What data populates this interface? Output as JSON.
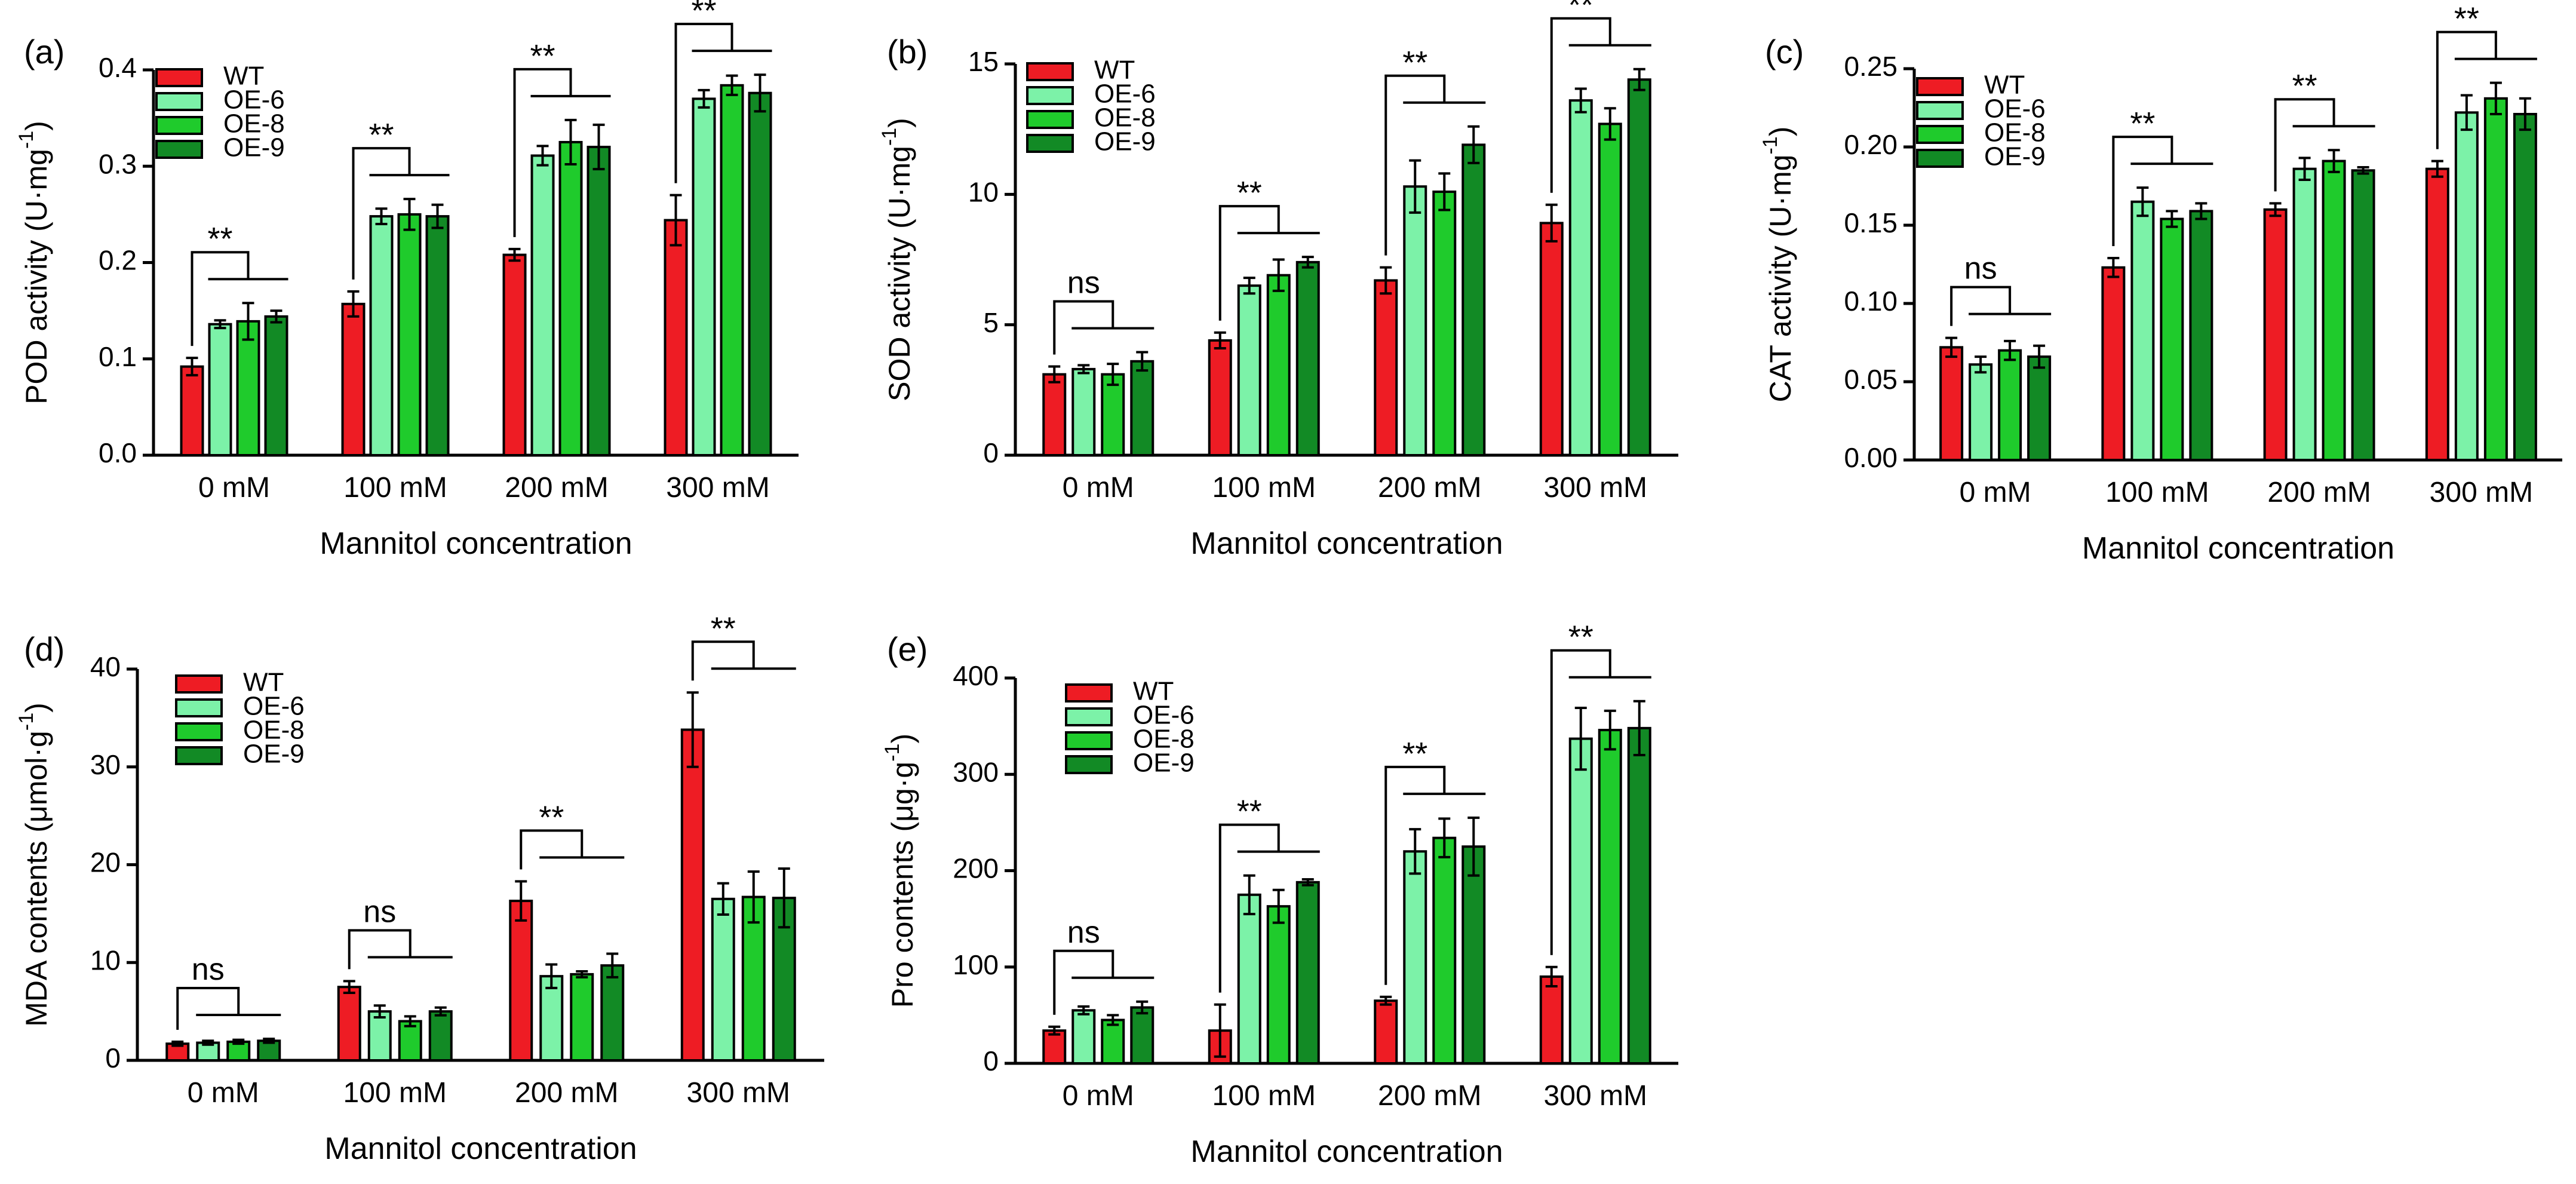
{
  "colors": {
    "WT": "#ee1c24",
    "OE-6": "#7cf2a8",
    "OE-8": "#1fcb2c",
    "OE-9": "#128a25"
  },
  "legend": [
    "WT",
    "OE-6",
    "OE-8",
    "OE-9"
  ],
  "chart_data": [
    {
      "type": "bar",
      "panel_label": "(a)",
      "title": "",
      "xlabel": "Mannitol concentration",
      "ylabel": "POD activity (U·mg",
      "ylabel_sup": "-1",
      "ylabel_close": ")",
      "categories": [
        "0 mM",
        "100 mM",
        "200 mM",
        "300 mM"
      ],
      "ylim": [
        0,
        0.4
      ],
      "yticks": [
        0,
        0.1,
        0.2,
        0.3,
        0.4
      ],
      "ytick_labels": [
        "0.0",
        "0.1",
        "0.2",
        "0.3",
        "0.4"
      ],
      "series": [
        {
          "name": "WT",
          "values": [
            0.092,
            0.157,
            0.208,
            0.244
          ],
          "errors": [
            0.009,
            0.013,
            0.006,
            0.026
          ]
        },
        {
          "name": "OE-6",
          "values": [
            0.136,
            0.248,
            0.311,
            0.37
          ],
          "errors": [
            0.004,
            0.008,
            0.01,
            0.009
          ]
        },
        {
          "name": "OE-8",
          "values": [
            0.139,
            0.25,
            0.325,
            0.384
          ],
          "errors": [
            0.019,
            0.016,
            0.023,
            0.01
          ]
        },
        {
          "name": "OE-9",
          "values": [
            0.144,
            0.248,
            0.32,
            0.376
          ],
          "errors": [
            0.006,
            0.012,
            0.023,
            0.019
          ]
        }
      ],
      "significance": [
        "**",
        "**",
        "**",
        "**"
      ]
    },
    {
      "type": "bar",
      "panel_label": "(b)",
      "title": "",
      "xlabel": "Mannitol concentration",
      "ylabel": "SOD activity (U·mg",
      "ylabel_sup": "-1",
      "ylabel_close": ")",
      "categories": [
        "0 mM",
        "100 mM",
        "200 mM",
        "300 mM"
      ],
      "ylim": [
        0,
        15
      ],
      "yticks": [
        0,
        5,
        10,
        15
      ],
      "ytick_labels": [
        "0",
        "5",
        "10",
        "15"
      ],
      "series": [
        {
          "name": "WT",
          "values": [
            3.1,
            4.4,
            6.7,
            8.9
          ],
          "errors": [
            0.3,
            0.3,
            0.5,
            0.7
          ]
        },
        {
          "name": "OE-6",
          "values": [
            3.3,
            6.5,
            10.3,
            13.6
          ],
          "errors": [
            0.15,
            0.3,
            1.0,
            0.45
          ]
        },
        {
          "name": "OE-8",
          "values": [
            3.1,
            6.9,
            10.1,
            12.7
          ],
          "errors": [
            0.4,
            0.6,
            0.7,
            0.6
          ]
        },
        {
          "name": "OE-9",
          "values": [
            3.6,
            7.4,
            11.9,
            14.4
          ],
          "errors": [
            0.35,
            0.2,
            0.7,
            0.4
          ]
        }
      ],
      "significance": [
        "ns",
        "**",
        "**",
        "**"
      ]
    },
    {
      "type": "bar",
      "panel_label": "(c)",
      "title": "",
      "xlabel": "Mannitol concentration",
      "ylabel": "CAT activity (U·mg",
      "ylabel_sup": "-1",
      "ylabel_close": ")",
      "categories": [
        "0 mM",
        "100 mM",
        "200 mM",
        "300 mM"
      ],
      "ylim": [
        0,
        0.25
      ],
      "yticks": [
        0,
        0.05,
        0.1,
        0.15,
        0.2,
        0.25
      ],
      "ytick_labels": [
        "0.00",
        "0.05",
        "0.10",
        "0.15",
        "0.20",
        "0.25"
      ],
      "series": [
        {
          "name": "WT",
          "values": [
            0.072,
            0.123,
            0.16,
            0.186
          ],
          "errors": [
            0.006,
            0.006,
            0.004,
            0.005
          ]
        },
        {
          "name": "OE-6",
          "values": [
            0.061,
            0.165,
            0.186,
            0.222
          ],
          "errors": [
            0.005,
            0.009,
            0.007,
            0.011
          ]
        },
        {
          "name": "OE-8",
          "values": [
            0.07,
            0.154,
            0.191,
            0.231
          ],
          "errors": [
            0.006,
            0.005,
            0.007,
            0.01
          ]
        },
        {
          "name": "OE-9",
          "values": [
            0.066,
            0.159,
            0.185,
            0.221
          ],
          "errors": [
            0.007,
            0.005,
            0.002,
            0.01
          ]
        }
      ],
      "significance": [
        "ns",
        "**",
        "**",
        "**"
      ]
    },
    {
      "type": "bar",
      "panel_label": "(d)",
      "title": "",
      "xlabel": "Mannitol concentration",
      "ylabel": "MDA contents (μmol·g",
      "ylabel_sup": "-1",
      "ylabel_close": ")",
      "categories": [
        "0 mM",
        "100 mM",
        "200 mM",
        "300 mM"
      ],
      "ylim": [
        0,
        40
      ],
      "yticks": [
        0,
        10,
        20,
        30,
        40
      ],
      "ytick_labels": [
        "0",
        "10",
        "20",
        "30",
        "40"
      ],
      "series": [
        {
          "name": "WT",
          "values": [
            1.7,
            7.5,
            16.3,
            33.8
          ],
          "errors": [
            0.2,
            0.6,
            2.0,
            3.8
          ]
        },
        {
          "name": "OE-6",
          "values": [
            1.8,
            5.0,
            8.6,
            16.5
          ],
          "errors": [
            0.2,
            0.6,
            1.2,
            1.6
          ]
        },
        {
          "name": "OE-8",
          "values": [
            1.9,
            4.0,
            8.8,
            16.7
          ],
          "errors": [
            0.2,
            0.5,
            0.3,
            2.6
          ]
        },
        {
          "name": "OE-9",
          "values": [
            2.0,
            5.0,
            9.7,
            16.6
          ],
          "errors": [
            0.2,
            0.4,
            1.2,
            3.0
          ]
        }
      ],
      "significance": [
        "ns",
        "ns",
        "**",
        "**"
      ]
    },
    {
      "type": "bar",
      "panel_label": "(e)",
      "title": "",
      "xlabel": "Mannitol concentration",
      "ylabel": "Pro contents (μg·g",
      "ylabel_sup": "-1",
      "ylabel_close": ")",
      "categories": [
        "0 mM",
        "100 mM",
        "200 mM",
        "300 mM"
      ],
      "ylim": [
        0,
        400
      ],
      "yticks": [
        0,
        100,
        200,
        300,
        400
      ],
      "ytick_labels": [
        "0",
        "100",
        "200",
        "300",
        "400"
      ],
      "series": [
        {
          "name": "WT",
          "values": [
            34,
            34,
            65,
            90
          ],
          "errors": [
            4,
            27,
            4,
            10
          ]
        },
        {
          "name": "OE-6",
          "values": [
            55,
            175,
            220,
            337
          ],
          "errors": [
            4,
            20,
            23,
            32
          ]
        },
        {
          "name": "OE-8",
          "values": [
            45,
            163,
            234,
            346
          ],
          "errors": [
            5,
            17,
            20,
            20
          ]
        },
        {
          "name": "OE-9",
          "values": [
            58,
            188,
            225,
            348
          ],
          "errors": [
            6,
            3,
            30,
            28
          ]
        }
      ],
      "significance": [
        "ns",
        "**",
        "**",
        "**"
      ]
    }
  ]
}
